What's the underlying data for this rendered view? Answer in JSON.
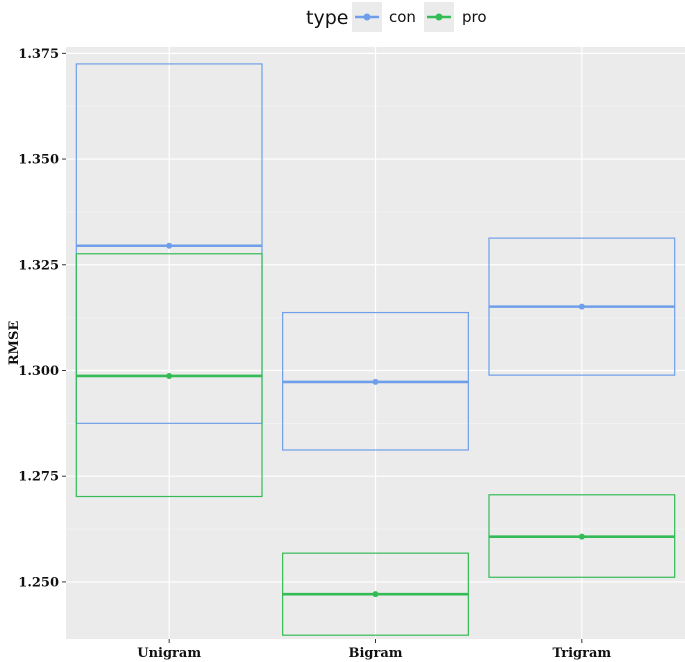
{
  "chart_data": {
    "type": "crossbar",
    "categories": [
      "Unigram",
      "Bigram",
      "Trigram"
    ],
    "ylabel": "RMSE",
    "xlabel": "",
    "ylim": [
      1.2365,
      1.3765
    ],
    "yticks": [
      "1.250",
      "1.275",
      "1.300",
      "1.325",
      "1.350",
      "1.375"
    ],
    "grid": true,
    "legend": {
      "title": "type",
      "position": "top",
      "entries": [
        "con",
        "pro"
      ]
    },
    "series": [
      {
        "name": "con",
        "color": "#6f9fea",
        "points": [
          {
            "category": "Unigram",
            "mean": 1.3295,
            "lower": 1.2875,
            "upper": 1.3725
          },
          {
            "category": "Bigram",
            "mean": 1.2973,
            "lower": 1.2812,
            "upper": 1.3137
          },
          {
            "category": "Trigram",
            "mean": 1.3151,
            "lower": 1.2989,
            "upper": 1.3313
          }
        ]
      },
      {
        "name": "pro",
        "color": "#33bb55",
        "points": [
          {
            "category": "Unigram",
            "mean": 1.2987,
            "lower": 1.2702,
            "upper": 1.3276
          },
          {
            "category": "Bigram",
            "mean": 1.2471,
            "lower": 1.2374,
            "upper": 1.2568
          },
          {
            "category": "Trigram",
            "mean": 1.2607,
            "lower": 1.2511,
            "upper": 1.2706
          }
        ]
      }
    ]
  }
}
